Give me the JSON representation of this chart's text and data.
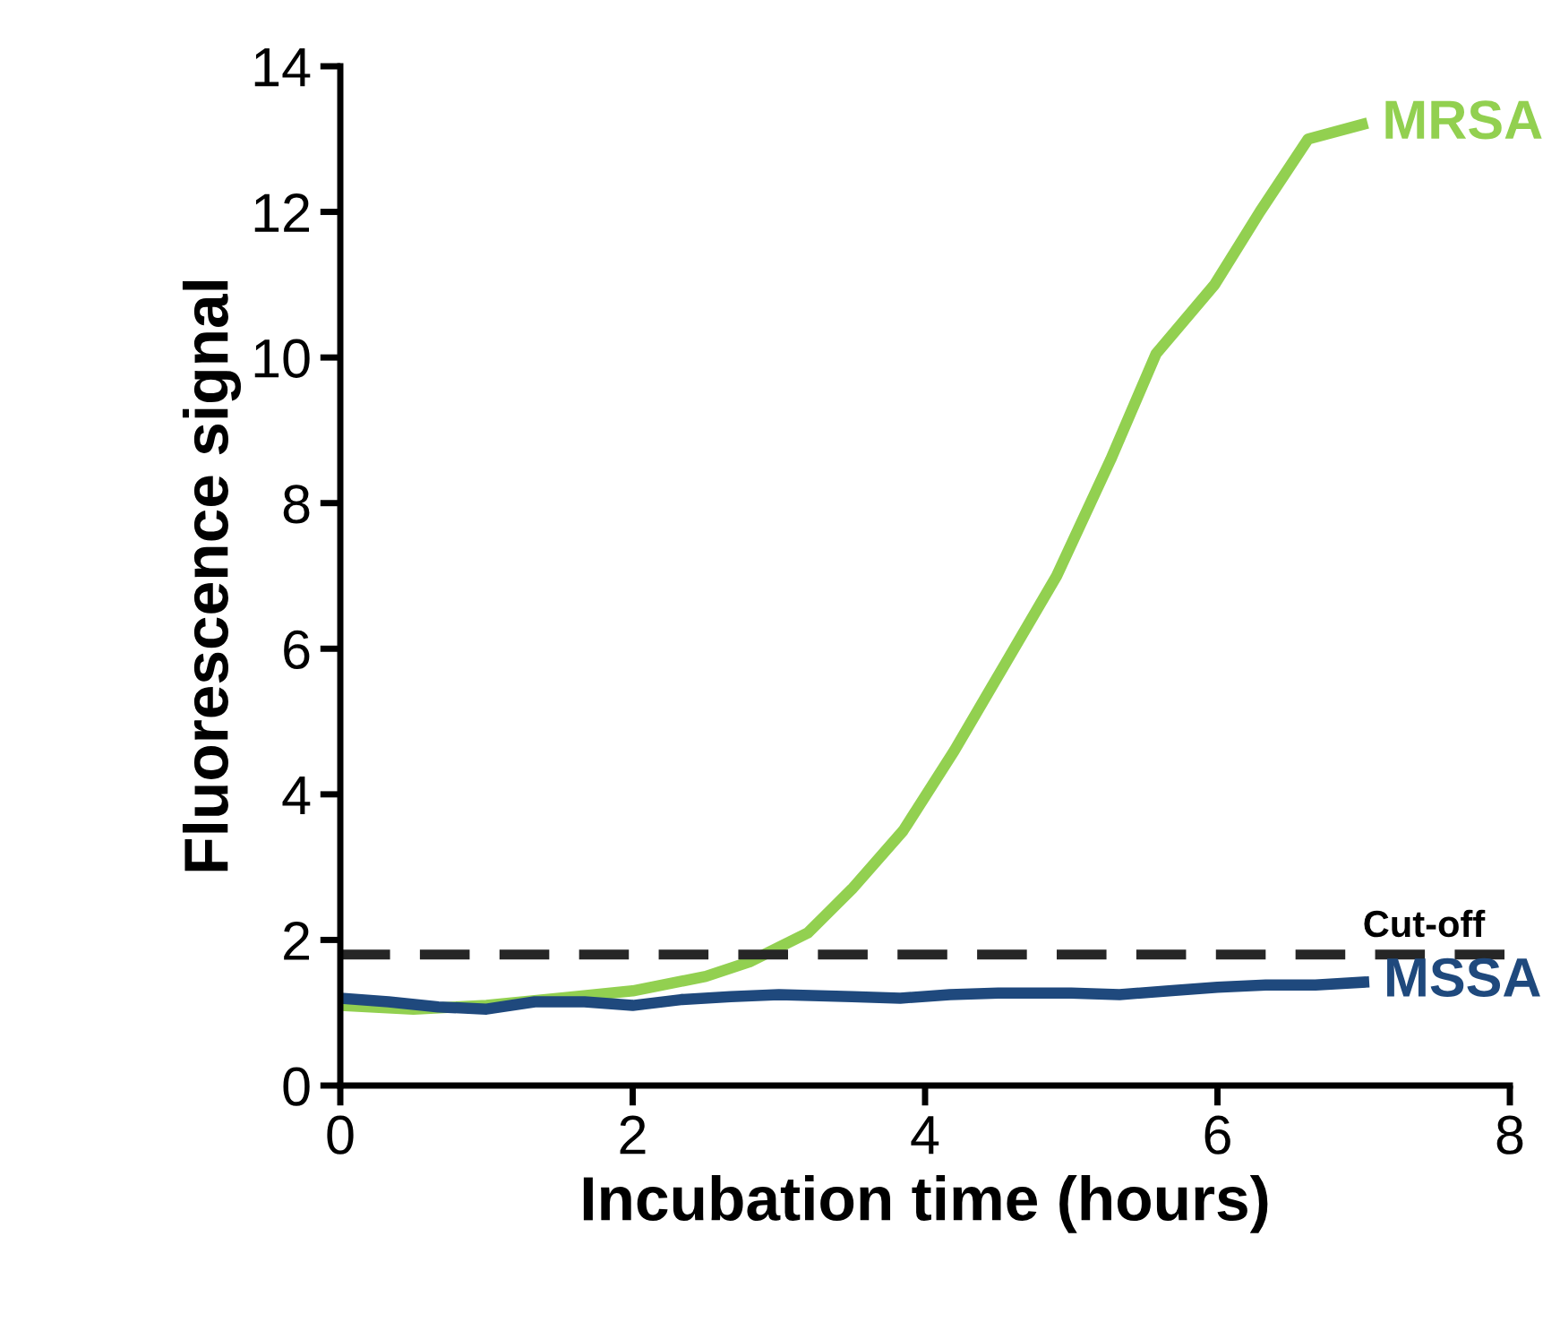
{
  "chart_data": {
    "type": "line",
    "xlabel": "Incubation time (hours)",
    "ylabel": "Fluorescence signal",
    "xlim": [
      0,
      8
    ],
    "ylim": [
      0,
      14
    ],
    "xticks": [
      0,
      2,
      4,
      6,
      8
    ],
    "yticks": [
      0,
      2,
      4,
      6,
      8,
      10,
      12,
      14
    ],
    "grid": false,
    "legend": false,
    "marker": "none",
    "line_style": "solid",
    "series": [
      {
        "name": "MRSA",
        "color": "#92d050",
        "x": [
          0,
          0.5,
          1,
          1.5,
          2,
          2.5,
          2.8,
          3.2,
          3.5,
          3.85,
          4.2,
          4.55,
          4.9,
          5.27,
          5.58,
          5.98,
          6.29,
          6.62,
          6.99
        ],
        "values": [
          1.1,
          1.05,
          1.1,
          1.2,
          1.3,
          1.5,
          1.7,
          2.1,
          2.7,
          3.5,
          4.6,
          5.8,
          7.0,
          8.6,
          10.05,
          11.0,
          12.0,
          13.0,
          13.2
        ]
      },
      {
        "name": "MSSA",
        "color": "#1f497d",
        "x": [
          0,
          0.33,
          0.67,
          1,
          1.33,
          1.67,
          2,
          2.33,
          2.67,
          3,
          3.5,
          3.83,
          4.17,
          4.5,
          5,
          5.33,
          5.67,
          6,
          6.33,
          6.67,
          7
        ],
        "values": [
          1.2,
          1.15,
          1.08,
          1.05,
          1.15,
          1.15,
          1.1,
          1.18,
          1.22,
          1.25,
          1.22,
          1.2,
          1.25,
          1.27,
          1.27,
          1.25,
          1.3,
          1.35,
          1.38,
          1.38,
          1.42
        ]
      }
    ],
    "ref_lines": [
      {
        "axis": "y",
        "value": 1.8,
        "label": "Cut-off",
        "color": "#262626",
        "line_style": "dashed"
      }
    ]
  }
}
